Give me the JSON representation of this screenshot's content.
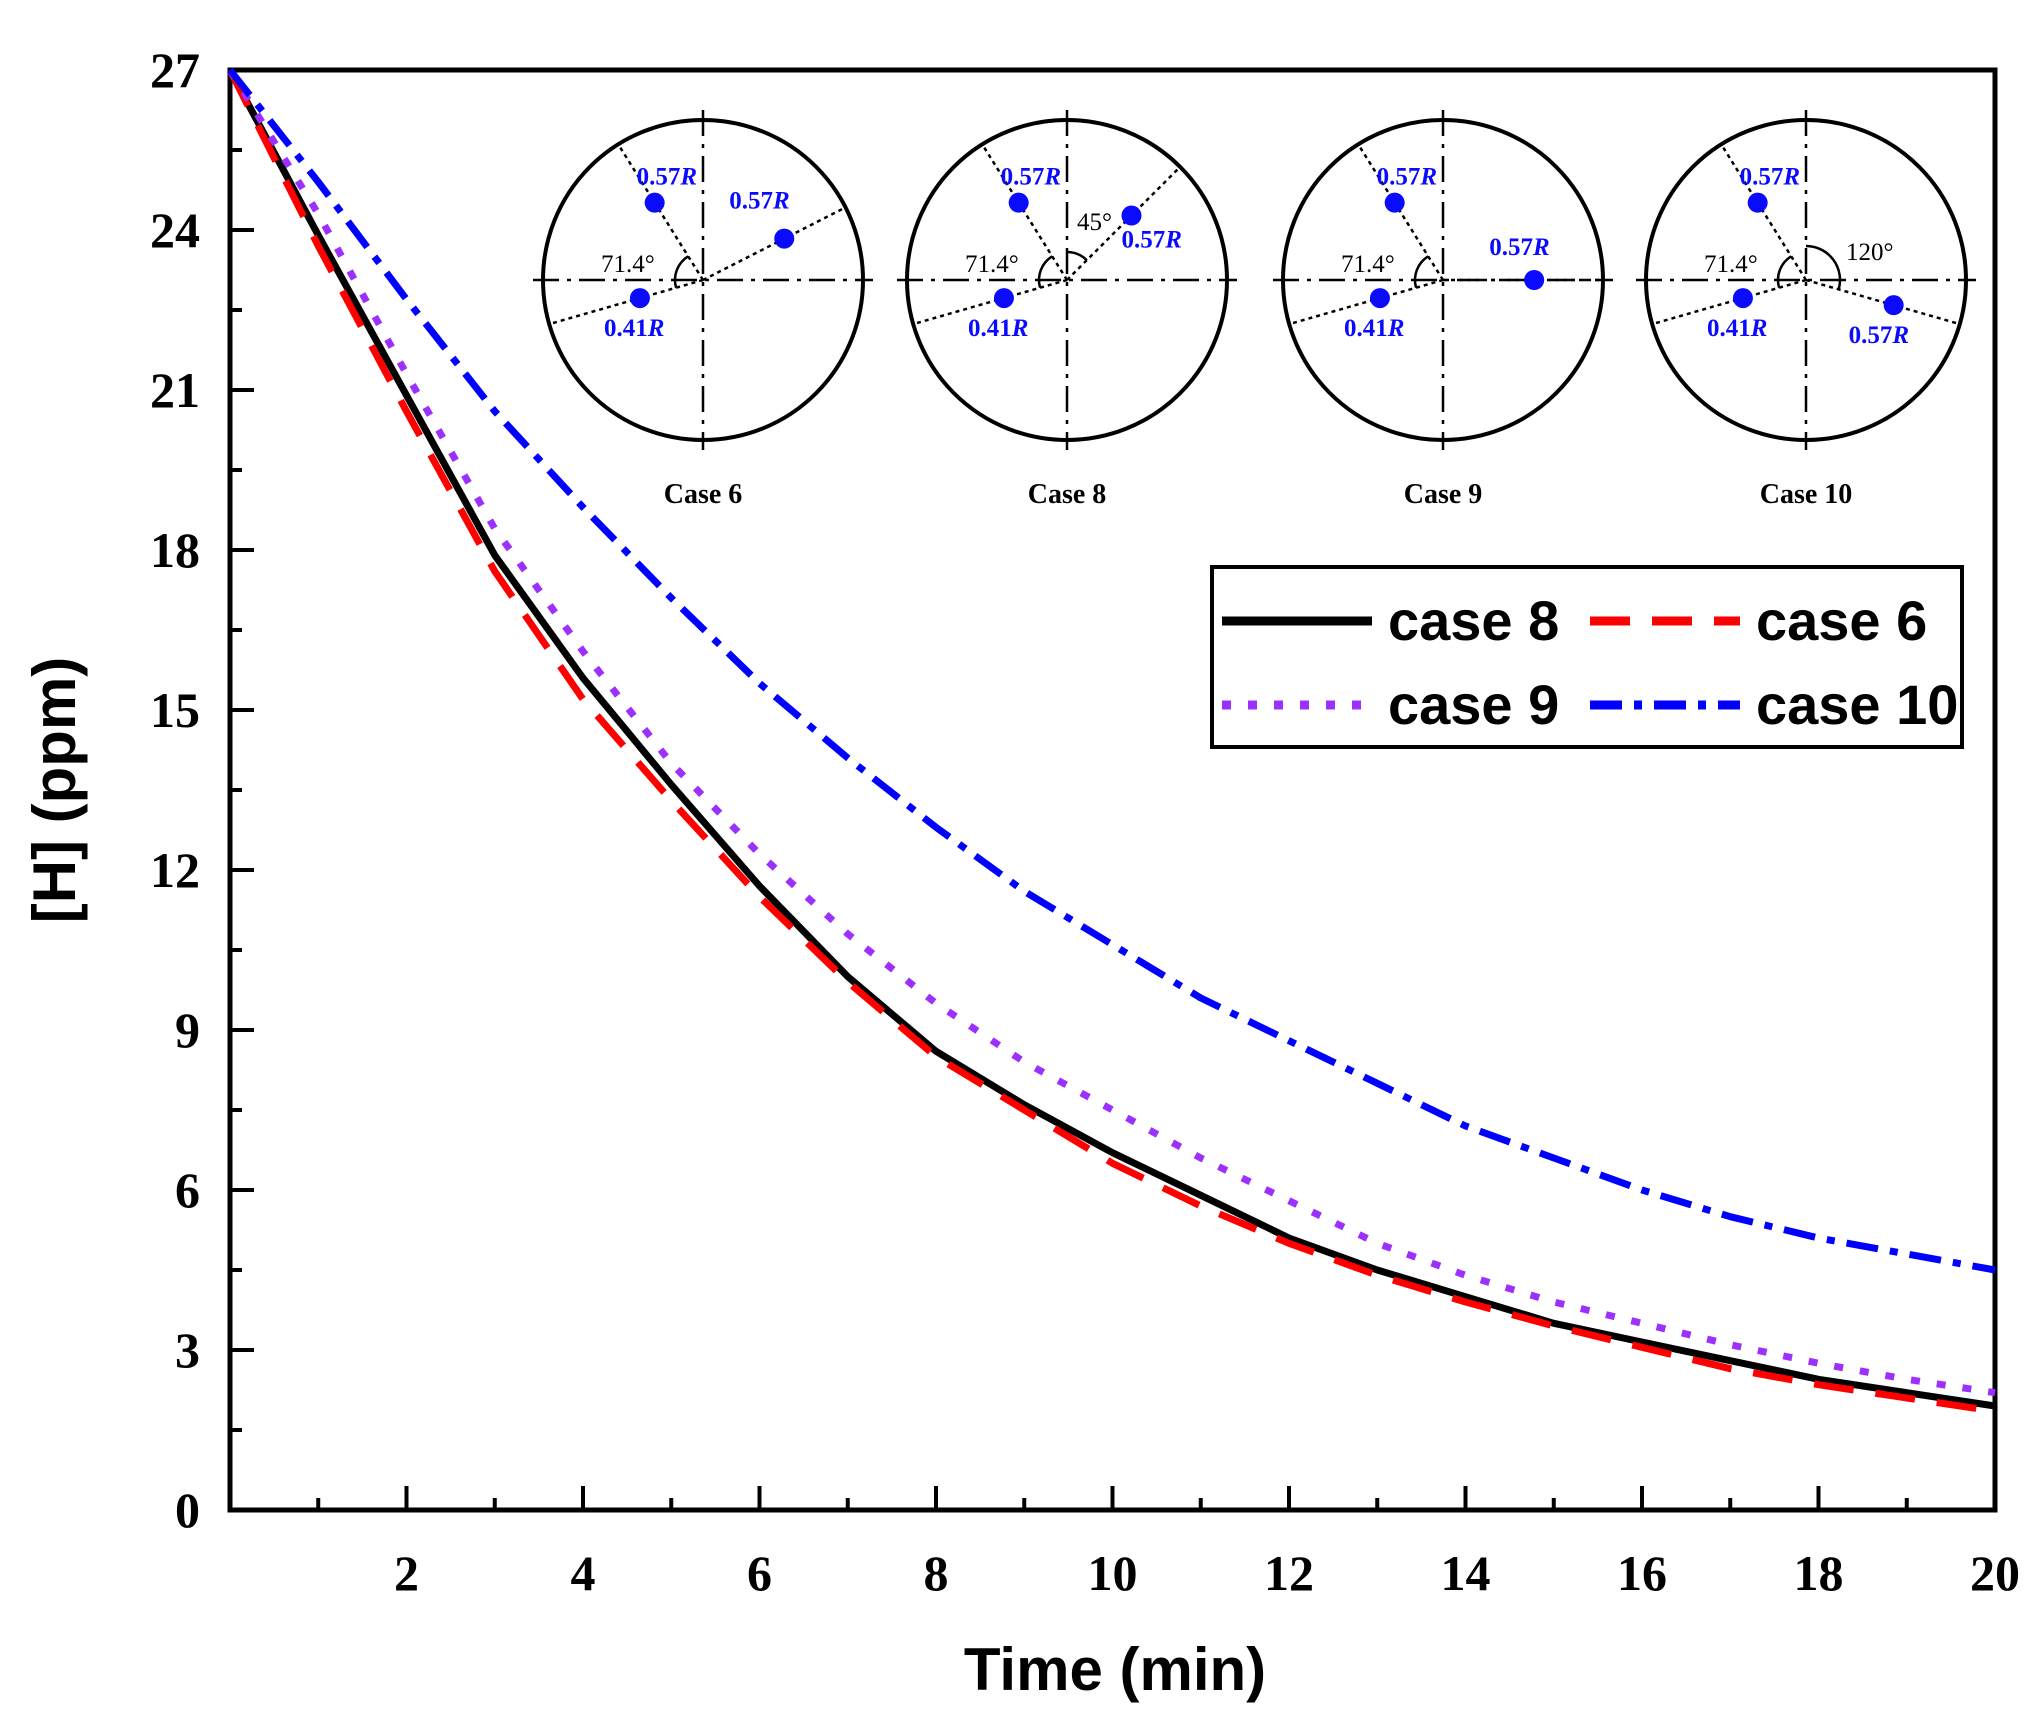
{
  "chart_data": {
    "type": "line",
    "title": "",
    "xlabel": "Time (min)",
    "ylabel": "[H] (ppm)",
    "xlim": [
      0,
      20
    ],
    "ylim": [
      0,
      27
    ],
    "x_ticks": [
      2,
      4,
      6,
      8,
      10,
      12,
      14,
      16,
      18,
      20
    ],
    "y_ticks": [
      0,
      3,
      6,
      9,
      12,
      15,
      18,
      21,
      24,
      27
    ],
    "grid": false,
    "legend_position": "top-right",
    "x": [
      0,
      1,
      2,
      3,
      4,
      5,
      6,
      7,
      8,
      9,
      10,
      11,
      12,
      13,
      14,
      15,
      16,
      17,
      18,
      19,
      20
    ],
    "series": [
      {
        "name": "case 8",
        "style": "solid",
        "color": "#000000",
        "values": [
          27.0,
          23.9,
          20.9,
          17.9,
          15.6,
          13.6,
          11.7,
          10.0,
          8.6,
          7.6,
          6.7,
          5.9,
          5.1,
          4.5,
          4.0,
          3.5,
          3.15,
          2.8,
          2.45,
          2.2,
          1.95
        ]
      },
      {
        "name": "case 6",
        "style": "dashed",
        "color": "#ff0000",
        "values": [
          27.0,
          23.7,
          20.6,
          17.6,
          15.2,
          13.3,
          11.5,
          9.9,
          8.5,
          7.5,
          6.5,
          5.7,
          5.0,
          4.4,
          3.9,
          3.45,
          3.05,
          2.65,
          2.35,
          2.1,
          1.85
        ]
      },
      {
        "name": "case 9",
        "style": "dotted",
        "color": "#9b30ff",
        "values": [
          27.0,
          24.3,
          21.3,
          18.4,
          16.1,
          14.0,
          12.3,
          10.8,
          9.5,
          8.4,
          7.5,
          6.6,
          5.8,
          5.0,
          4.4,
          3.9,
          3.5,
          3.1,
          2.75,
          2.45,
          2.2
        ]
      },
      {
        "name": "case 10",
        "style": "dashdot",
        "color": "#0000ff",
        "values": [
          27.0,
          24.9,
          22.7,
          20.6,
          18.8,
          17.1,
          15.5,
          14.1,
          12.8,
          11.6,
          10.6,
          9.6,
          8.8,
          8.0,
          7.2,
          6.6,
          6.0,
          5.5,
          5.1,
          4.8,
          4.5
        ]
      }
    ],
    "inset": [
      {
        "caption": "Case 6",
        "angle_label": "71.4°",
        "radius_labels": [
          "0.57",
          "0.57",
          "0.41"
        ]
      },
      {
        "caption": "Case 8",
        "angle_label": "71.4°",
        "extra_angle_label": "45°",
        "radius_labels": [
          "0.57",
          "0.57",
          "0.41"
        ]
      },
      {
        "caption": "Case 9",
        "angle_label": "71.4°",
        "radius_labels": [
          "0.57",
          "0.57",
          "0.41"
        ]
      },
      {
        "caption": "Case 10",
        "angle_label": "71.4°",
        "extra_angle_label": "120°",
        "radius_labels": [
          "0.57",
          "0.57",
          "0.41"
        ]
      }
    ],
    "radius_symbol": "R"
  }
}
